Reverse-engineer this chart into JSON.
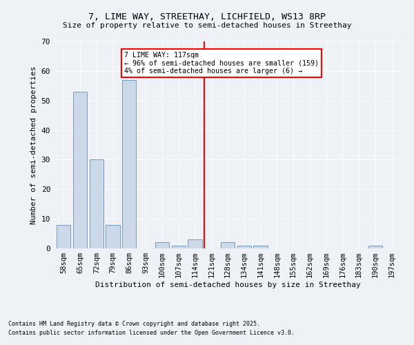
{
  "title": "7, LIME WAY, STREETHAY, LICHFIELD, WS13 8RP",
  "subtitle": "Size of property relative to semi-detached houses in Streethay",
  "xlabel": "Distribution of semi-detached houses by size in Streethay",
  "ylabel": "Number of semi-detached properties",
  "footnote1": "Contains HM Land Registry data © Crown copyright and database right 2025.",
  "footnote2": "Contains public sector information licensed under the Open Government Licence v3.0.",
  "bar_labels": [
    "58sqm",
    "65sqm",
    "72sqm",
    "79sqm",
    "86sqm",
    "93sqm",
    "100sqm",
    "107sqm",
    "114sqm",
    "121sqm",
    "128sqm",
    "134sqm",
    "141sqm",
    "148sqm",
    "155sqm",
    "162sqm",
    "169sqm",
    "176sqm",
    "183sqm",
    "190sqm",
    "197sqm"
  ],
  "bar_values": [
    8,
    53,
    30,
    8,
    57,
    0,
    2,
    1,
    3,
    0,
    2,
    1,
    1,
    0,
    0,
    0,
    0,
    0,
    0,
    1,
    0
  ],
  "bar_color": "#ccd9e8",
  "bar_edge_color": "#7799bb",
  "ylim": [
    0,
    70
  ],
  "yticks": [
    0,
    10,
    20,
    30,
    40,
    50,
    60,
    70
  ],
  "vline_x_index": 8.57,
  "annotation_line1": "7 LIME WAY: 117sqm",
  "annotation_line2": "← 96% of semi-detached houses are smaller (159)",
  "annotation_line3": "4% of semi-detached houses are larger (6) →",
  "background_color": "#eef2f7",
  "plot_bg_color": "#eef2f7"
}
